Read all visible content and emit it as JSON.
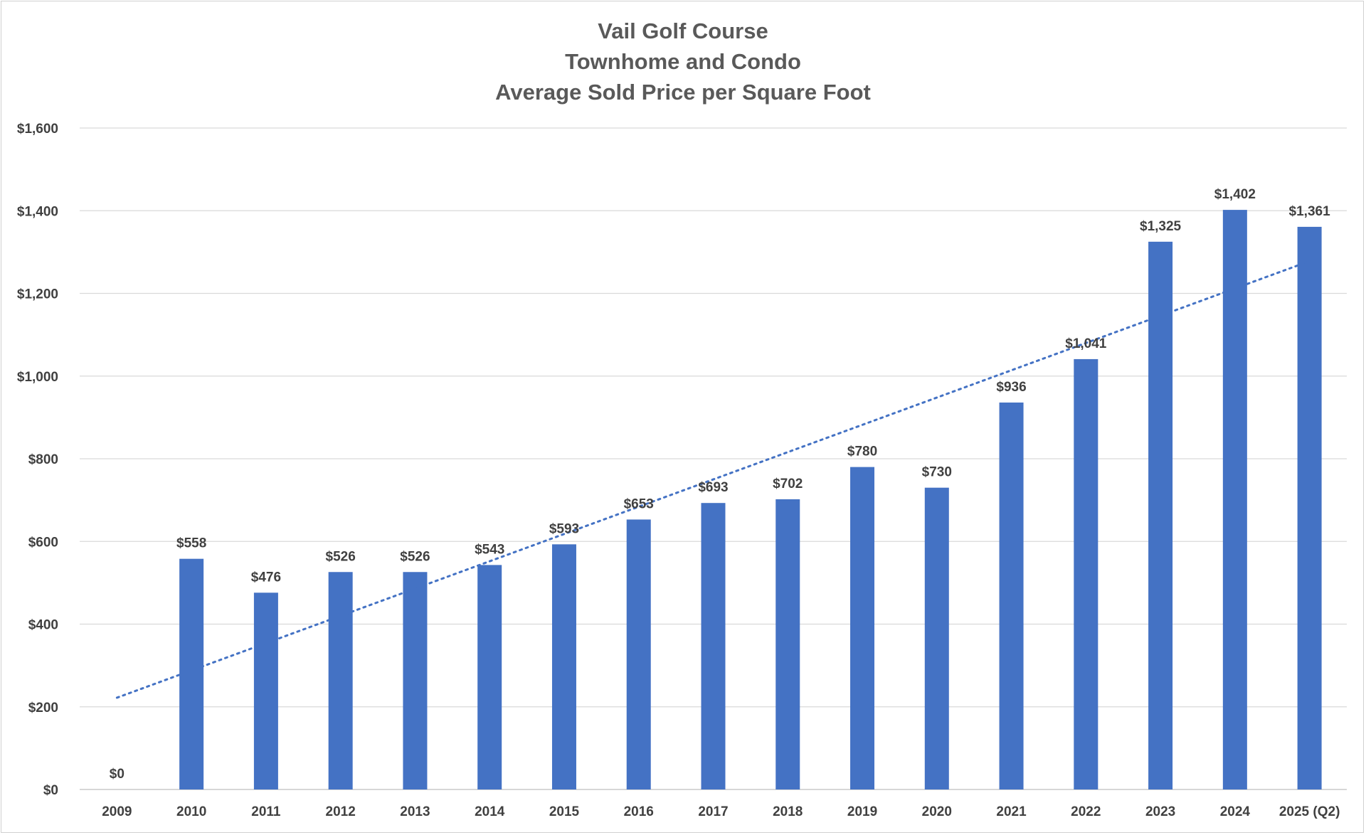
{
  "chart_data": {
    "type": "bar",
    "title": [
      "Vail Golf Course",
      "Townhome and Condo",
      "Average Sold Price per Square Foot"
    ],
    "categories": [
      "2009",
      "2010",
      "2011",
      "2012",
      "2013",
      "2014",
      "2015",
      "2016",
      "2017",
      "2018",
      "2019",
      "2020",
      "2021",
      "2022",
      "2023",
      "2024",
      "2025 (Q2)"
    ],
    "values": [
      0,
      558,
      476,
      526,
      526,
      543,
      593,
      653,
      693,
      702,
      780,
      730,
      936,
      1041,
      1325,
      1402,
      1361
    ],
    "data_labels": [
      "$0",
      "$558",
      "$476",
      "$526",
      "$526",
      "$543",
      "$593",
      "$653",
      "$693",
      "$702",
      "$780",
      "$730",
      "$936",
      "$1,041",
      "$1,325",
      "$1,402",
      "$1,361"
    ],
    "ylim": [
      0,
      1600
    ],
    "yticks": [
      0,
      200,
      400,
      600,
      800,
      1000,
      1200,
      1400,
      1600
    ],
    "ytick_labels": [
      "$0",
      "$200",
      "$400",
      "$600",
      "$800",
      "$1,000",
      "$1,200",
      "$1,400",
      "$1,600"
    ],
    "xlabel": "",
    "ylabel": "",
    "grid": true,
    "legend": "none",
    "trendline": {
      "type": "linear",
      "style": "dotted",
      "start_value": 222,
      "end_value": 1278
    },
    "colors": {
      "bar": "#4472C4",
      "trend": "#4472C4",
      "grid": "#d9d9d9",
      "text": "#404040",
      "title": "#595959"
    }
  }
}
